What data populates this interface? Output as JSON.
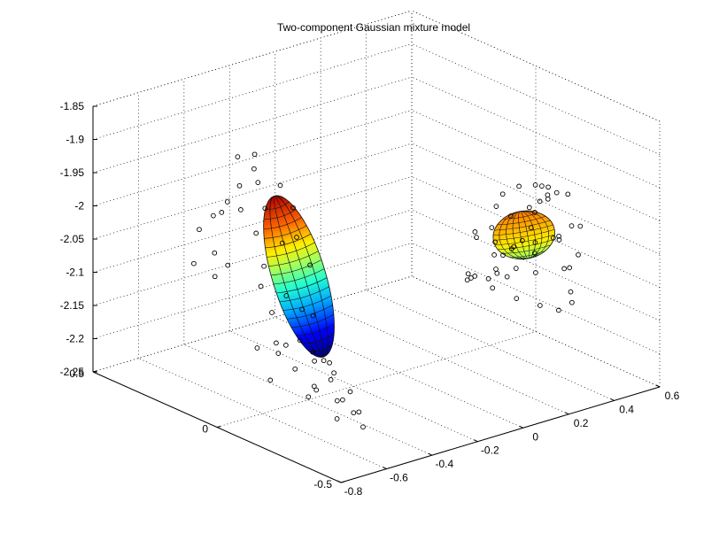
{
  "chart_data": {
    "type": "scatter",
    "title": "Two-component Gaussian mixture model",
    "xlabel": "",
    "ylabel": "",
    "zlabel": "",
    "grid": true,
    "x_ticks": [
      "-0.8",
      "-0.6",
      "-0.4",
      "-0.2",
      "0",
      "0.2",
      "0.4",
      "0.6"
    ],
    "y_ticks": [
      "-0.5",
      "0",
      "0.5"
    ],
    "z_ticks": [
      "-1.85",
      "-1.9",
      "-1.95",
      "-2",
      "-2.05",
      "-2.1",
      "-2.15",
      "-2.2",
      "-2.25"
    ],
    "xlim": [
      -0.8,
      0.6
    ],
    "ylim": [
      -0.5,
      0.5
    ],
    "zlim": [
      -2.25,
      -1.85
    ],
    "series": [
      {
        "marker": "open-circle",
        "x": [
          -0.58,
          -0.6,
          -0.62,
          -0.55,
          -0.5,
          -0.52,
          -0.57,
          -0.63,
          -0.65,
          -0.6,
          -0.48,
          -0.45,
          -0.5,
          -0.55,
          -0.6,
          -0.52,
          -0.47,
          -0.43,
          -0.4,
          -0.45,
          -0.5,
          -0.54,
          -0.58,
          -0.44,
          -0.41,
          -0.38,
          -0.36,
          -0.4,
          -0.46,
          -0.5,
          -0.35,
          -0.33,
          -0.37,
          -0.42,
          -0.3,
          -0.28,
          -0.32,
          -0.27,
          -0.25,
          -0.22,
          -0.2,
          -0.24,
          -0.18,
          -0.62,
          -0.66,
          -0.58,
          -0.54,
          -0.68,
          -0.7,
          -0.64
        ],
        "y": [
          0.05,
          0.1,
          0.0,
          0.08,
          0.02,
          -0.05,
          0.12,
          0.06,
          -0.02,
          -0.08,
          0.1,
          0.0,
          -0.1,
          0.04,
          0.14,
          0.08,
          -0.04,
          0.06,
          -0.02,
          0.1,
          -0.06,
          0.0,
          0.04,
          -0.1,
          0.08,
          0.0,
          -0.05,
          0.12,
          -0.08,
          0.06,
          0.02,
          -0.04,
          0.08,
          -0.02,
          0.0,
          -0.06,
          0.04,
          -0.02,
          0.02,
          -0.04,
          0.0,
          0.03,
          -0.02,
          0.18,
          0.2,
          0.16,
          0.22,
          0.12,
          0.1,
          0.24
        ],
        "z": [
          -1.87,
          -1.88,
          -1.9,
          -1.9,
          -1.92,
          -1.94,
          -1.93,
          -1.95,
          -1.97,
          -1.98,
          -1.97,
          -2.0,
          -2.02,
          -2.04,
          -2.05,
          -2.08,
          -2.1,
          -2.1,
          -2.12,
          -2.13,
          -2.14,
          -2.15,
          -2.16,
          -2.17,
          -2.18,
          -2.18,
          -2.19,
          -2.2,
          -2.21,
          -2.22,
          -2.2,
          -2.21,
          -2.22,
          -2.24,
          -2.23,
          -2.24,
          -2.25,
          -2.26,
          -2.27,
          -2.28,
          -2.29,
          -2.3,
          -2.31,
          -1.98,
          -2.0,
          -1.96,
          -1.99,
          -2.02,
          -2.05,
          -2.06
        ]
      },
      {
        "marker": "open-circle",
        "x": [
          0.1,
          0.15,
          0.2,
          0.25,
          0.3,
          0.35,
          0.38,
          0.4,
          0.36,
          0.3,
          0.24,
          0.18,
          0.12,
          0.08,
          0.05,
          0.1,
          0.16,
          0.22,
          0.28,
          0.34,
          0.4,
          0.42,
          0.36,
          0.3,
          0.22,
          0.16,
          0.1,
          0.06,
          0.12,
          0.2,
          0.26,
          0.32,
          0.38,
          0.44,
          0.4,
          0.34,
          0.28,
          0.2,
          0.14,
          0.08,
          0.04,
          0.02,
          0.06,
          0.12,
          0.18,
          0.24,
          0.3,
          0.36,
          0.42,
          0.46
        ],
        "y": [
          -0.3,
          -0.28,
          -0.3,
          -0.32,
          -0.3,
          -0.28,
          -0.25,
          -0.2,
          -0.35,
          -0.36,
          -0.38,
          -0.36,
          -0.34,
          -0.3,
          -0.26,
          -0.22,
          -0.24,
          -0.26,
          -0.24,
          -0.22,
          -0.18,
          -0.26,
          -0.4,
          -0.42,
          -0.42,
          -0.4,
          -0.38,
          -0.34,
          -0.28,
          -0.2,
          -0.18,
          -0.16,
          -0.2,
          -0.24,
          -0.32,
          -0.38,
          -0.44,
          -0.46,
          -0.44,
          -0.4,
          -0.34,
          -0.26,
          -0.22,
          -0.18,
          -0.14,
          -0.14,
          -0.16,
          -0.22,
          -0.28,
          -0.3
        ],
        "z": [
          -1.96,
          -1.95,
          -1.94,
          -1.94,
          -1.95,
          -1.96,
          -1.98,
          -2.0,
          -1.96,
          -1.95,
          -1.95,
          -1.96,
          -1.97,
          -1.99,
          -2.0,
          -2.02,
          -2.03,
          -2.04,
          -2.04,
          -2.03,
          -2.02,
          -2.05,
          -2.0,
          -1.99,
          -2.0,
          -2.02,
          -2.04,
          -2.05,
          -2.06,
          -2.06,
          -2.07,
          -2.07,
          -2.06,
          -2.05,
          -2.08,
          -2.1,
          -2.1,
          -2.1,
          -2.09,
          -2.08,
          -2.07,
          -2.06,
          -2.08,
          -2.09,
          -2.1,
          -2.11,
          -2.11,
          -2.1,
          -2.09,
          -2.07
        ]
      }
    ],
    "components": [
      {
        "type": "ellipsoid",
        "center": [
          -0.44,
          0.0,
          -2.06
        ],
        "colormap": "jet"
      },
      {
        "type": "ellipsoid",
        "center": [
          0.2,
          -0.32,
          -2.01
        ],
        "colormap": "jet"
      }
    ]
  }
}
